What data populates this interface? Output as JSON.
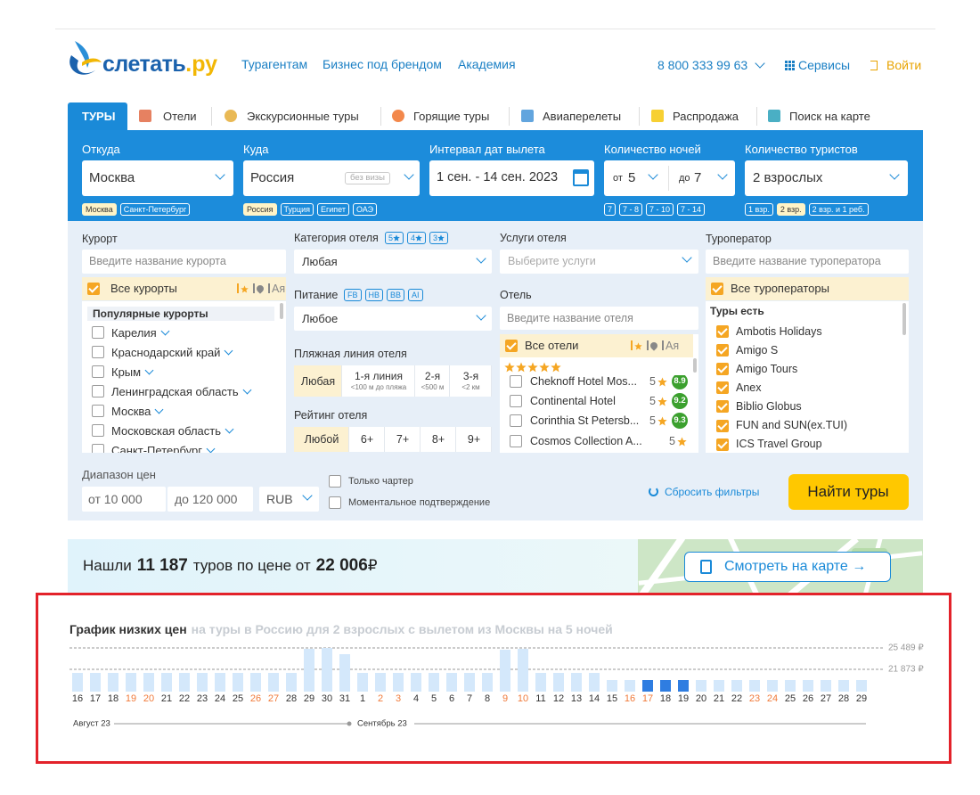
{
  "header": {
    "logo": {
      "name": "слетать",
      "tld": ".ру"
    },
    "nav": [
      "Турагентам",
      "Бизнес под брендом",
      "Академия"
    ],
    "phone": "8 800 333 99 63",
    "services": "Сервисы",
    "login": "Войти"
  },
  "tabs": [
    "ТУРЫ",
    "Отели",
    "Экскурсионные туры",
    "Горящие туры",
    "Авиаперелеты",
    "Распродажа",
    "Поиск на карте"
  ],
  "search": {
    "from": {
      "label": "Откуда",
      "value": "Москва",
      "chips": [
        "Москва",
        "Санкт-Петербург"
      ]
    },
    "to": {
      "label": "Куда",
      "value": "Россия",
      "badge": "без визы",
      "chips": [
        "Россия",
        "Турция",
        "Египет",
        "ОАЭ"
      ]
    },
    "dates": {
      "label": "Интервал дат вылета",
      "value": "1 сен. - 14 сен. 2023"
    },
    "nights": {
      "label": "Количество ночей",
      "from_prefix": "от",
      "from": "5",
      "to_prefix": "до",
      "to": "7",
      "chips": [
        "7",
        "7 - 8",
        "7 - 10",
        "7 - 14"
      ]
    },
    "tourists": {
      "label": "Количество туристов",
      "value": "2 взрослых",
      "chips": [
        "1 взр.",
        "2 взр.",
        "2 взр. и 1 реб."
      ]
    }
  },
  "filters": {
    "resort": {
      "label": "Курорт",
      "placeholder": "Введите название курорта",
      "all": "Все курорты",
      "sort": "Ая",
      "group": "Популярные курорты",
      "items": [
        "Карелия",
        "Краснодарский край",
        "Крым",
        "Ленинградская область",
        "Москва",
        "Московская область",
        "Санкт-Петербург"
      ]
    },
    "category": {
      "label": "Категория отеля",
      "stars": [
        "5",
        "4",
        "3"
      ],
      "value": "Любая"
    },
    "meal": {
      "label": "Питание",
      "chips": [
        "FB",
        "HB",
        "BB",
        "AI"
      ],
      "value": "Любое"
    },
    "beach": {
      "label": "Пляжная линия отеля",
      "options": [
        {
          "main": "Любая"
        },
        {
          "main": "1-я линия",
          "sub": "<100 м до пляжа"
        },
        {
          "main": "2-я",
          "sub": "<500 м"
        },
        {
          "main": "3-я",
          "sub": "<2 км"
        }
      ]
    },
    "rating": {
      "label": "Рейтинг отеля",
      "options": [
        "Любой",
        "6+",
        "7+",
        "8+",
        "9+"
      ]
    },
    "services": {
      "label": "Услуги отеля",
      "placeholder": "Выберите услуги"
    },
    "hotel": {
      "label": "Отель",
      "placeholder": "Введите название отеля",
      "all": "Все отели",
      "sort": "Ая",
      "items": [
        {
          "name": "Cheknoff Hotel Mos...",
          "stars": "5",
          "rating": "8.9"
        },
        {
          "name": "Continental Hotel",
          "stars": "5",
          "rating": "9.2"
        },
        {
          "name": "Corinthia St Petersb...",
          "stars": "5",
          "rating": "9.3"
        },
        {
          "name": "Cosmos Collection A...",
          "stars": "5"
        }
      ]
    },
    "operator": {
      "label": "Туроператор",
      "placeholder": "Введите название туроператора",
      "all": "Все туроператоры",
      "group": "Туры есть",
      "items": [
        "Ambotis Holidays",
        "Amigo S",
        "Amigo Tours",
        "Anex",
        "Biblio Globus",
        "FUN and SUN(ex.TUI)",
        "ICS Travel Group"
      ]
    },
    "price": {
      "label": "Диапазон цен",
      "from": "от 10 000",
      "to": "до 120 000",
      "currency": "RUB"
    },
    "checks": [
      "Только чартер",
      "Моментальное подтверждение"
    ],
    "reset": "Сбросить фильтры",
    "submit": "Найти туры"
  },
  "result": {
    "prefix": "Нашли",
    "count": "11 187",
    "middle": "туров по цене от",
    "price": "22 006",
    "currency": "₽",
    "map_button": "Смотреть на карте →"
  },
  "price_chart": {
    "type": "bar",
    "title": "График низких цен",
    "subtitle": "на туры в Россию для 2 взрослых с вылетом из Москвы на 5 ночей",
    "categories": [
      "16",
      "17",
      "18",
      "19",
      "20",
      "21",
      "22",
      "23",
      "24",
      "25",
      "26",
      "27",
      "28",
      "29",
      "30",
      "31",
      "1",
      "2",
      "3",
      "4",
      "5",
      "6",
      "7",
      "8",
      "9",
      "10",
      "11",
      "12",
      "13",
      "14",
      "15",
      "16",
      "17",
      "18",
      "19",
      "20",
      "21",
      "22",
      "23",
      "24",
      "25",
      "26",
      "27",
      "28",
      "29"
    ],
    "values": [
      21270,
      21270,
      21270,
      21270,
      21270,
      21270,
      21270,
      21270,
      21270,
      21270,
      21270,
      21270,
      21270,
      25340,
      25489,
      24434,
      21270,
      21270,
      21270,
      21270,
      21270,
      21270,
      21270,
      21270,
      25188,
      25340,
      21270,
      21270,
      21270,
      21270,
      20064,
      20064,
      20064,
      20064,
      20064,
      20064,
      20064,
      20064,
      20064,
      20064,
      20064,
      20064,
      20064,
      20064,
      20064
    ],
    "colors": [
      "#d4e8fb",
      "#d4e8fb",
      "#d4e8fb",
      "#d4e8fb",
      "#d4e8fb",
      "#d4e8fb",
      "#d4e8fb",
      "#d4e8fb",
      "#d4e8fb",
      "#d4e8fb",
      "#d4e8fb",
      "#d4e8fb",
      "#d4e8fb",
      "#d4e8fb",
      "#d4e8fb",
      "#d4e8fb",
      "#d4e8fb",
      "#d4e8fb",
      "#d4e8fb",
      "#d4e8fb",
      "#d4e8fb",
      "#d4e8fb",
      "#d4e8fb",
      "#d4e8fb",
      "#d4e8fb",
      "#d4e8fb",
      "#d4e8fb",
      "#d4e8fb",
      "#d4e8fb",
      "#d4e8fb",
      "#d4e8fb",
      "#d4e8fb",
      "#2f7de1",
      "#2f7de1",
      "#2f7de1",
      "#d4e8fb",
      "#d4e8fb",
      "#d4e8fb",
      "#d4e8fb",
      "#d4e8fb",
      "#d4e8fb",
      "#d4e8fb",
      "#d4e8fb",
      "#d4e8fb",
      "#d4e8fb"
    ],
    "label_colors": [
      "#333",
      "#333",
      "#333",
      "#f07a3a",
      "#f07a3a",
      "#333",
      "#333",
      "#333",
      "#333",
      "#333",
      "#f07a3a",
      "#f07a3a",
      "#333",
      "#333",
      "#333",
      "#333",
      "#333",
      "#f07a3a",
      "#f07a3a",
      "#333",
      "#333",
      "#333",
      "#333",
      "#333",
      "#f07a3a",
      "#f07a3a",
      "#333",
      "#333",
      "#333",
      "#333",
      "#333",
      "#f07a3a",
      "#f07a3a",
      "#333",
      "#333",
      "#333",
      "#333",
      "#333",
      "#f07a3a",
      "#f07a3a",
      "#333",
      "#333",
      "#333",
      "#333",
      "#333"
    ],
    "ylim": [
      18105,
      25489
    ],
    "reference_lines": [
      {
        "value": 25489,
        "label": "25 489 ₽"
      },
      {
        "value": 21873,
        "label": "21 873 ₽"
      }
    ],
    "months": [
      "Август 23",
      "Сентябрь 23"
    ]
  }
}
